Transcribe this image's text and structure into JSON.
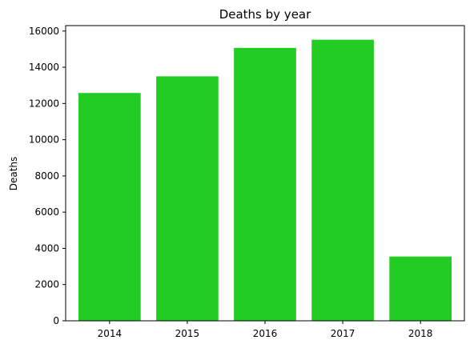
{
  "chart_data": {
    "type": "bar",
    "title": "Deaths by year",
    "xlabel": "",
    "ylabel": "Deaths",
    "categories": [
      "2014",
      "2015",
      "2016",
      "2017",
      "2018"
    ],
    "values": [
      12580,
      13500,
      15070,
      15520,
      3550
    ],
    "ylim": [
      0,
      16300
    ],
    "yticks": [
      0,
      2000,
      4000,
      6000,
      8000,
      10000,
      12000,
      14000,
      16000
    ],
    "bar_color": "#22cc22",
    "grid": false,
    "legend": "none"
  }
}
